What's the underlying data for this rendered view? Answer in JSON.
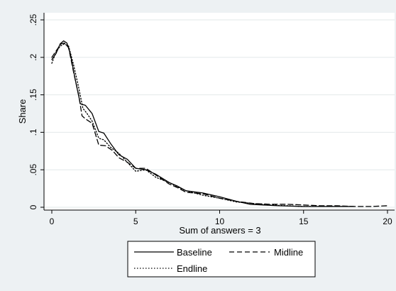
{
  "chart_data": {
    "type": "line",
    "title": "",
    "xlabel": "Sum of answers = 3",
    "ylabel": "Share",
    "xlim": [
      0,
      20
    ],
    "ylim": [
      0,
      0.25
    ],
    "x_ticks": [
      {
        "value": 0,
        "label": "0"
      },
      {
        "value": 5,
        "label": "5"
      },
      {
        "value": 10,
        "label": "10"
      },
      {
        "value": 15,
        "label": "15"
      },
      {
        "value": 20,
        "label": "20"
      }
    ],
    "y_ticks": [
      {
        "value": 0,
        "label": "0"
      },
      {
        "value": 0.05,
        "label": ".05"
      },
      {
        "value": 0.1,
        "label": ".1"
      },
      {
        "value": 0.15,
        "label": ".15"
      },
      {
        "value": 0.2,
        "label": ".2"
      },
      {
        "value": 0.25,
        "label": ".25"
      }
    ],
    "grid": true,
    "legend_position": "bottom",
    "series": [
      {
        "name": "Baseline",
        "style": "solid",
        "color": "#000000",
        "points": [
          [
            0,
            0.197
          ],
          [
            0.25,
            0.205
          ],
          [
            0.5,
            0.218
          ],
          [
            0.7,
            0.222
          ],
          [
            0.9,
            0.219
          ],
          [
            1.1,
            0.205
          ],
          [
            1.4,
            0.17
          ],
          [
            1.7,
            0.138
          ],
          [
            2.0,
            0.136
          ],
          [
            2.4,
            0.125
          ],
          [
            2.8,
            0.101
          ],
          [
            3.1,
            0.099
          ],
          [
            3.5,
            0.085
          ],
          [
            4.0,
            0.07
          ],
          [
            4.5,
            0.064
          ],
          [
            5.0,
            0.052
          ],
          [
            5.6,
            0.05
          ],
          [
            6.2,
            0.044
          ],
          [
            7.0,
            0.033
          ],
          [
            7.5,
            0.028
          ],
          [
            8.0,
            0.022
          ],
          [
            9.0,
            0.019
          ],
          [
            10.0,
            0.014
          ],
          [
            11.0,
            0.008
          ],
          [
            11.8,
            0.004
          ],
          [
            12.6,
            0.003
          ],
          [
            13.5,
            0.002
          ],
          [
            15.0,
            0.001
          ],
          [
            16.5,
            0.001
          ],
          [
            18.0,
            0.001
          ]
        ]
      },
      {
        "name": "Midline",
        "style": "dashed",
        "color": "#000000",
        "points": [
          [
            0,
            0.2
          ],
          [
            0.3,
            0.21
          ],
          [
            0.55,
            0.218
          ],
          [
            0.75,
            0.219
          ],
          [
            1.0,
            0.213
          ],
          [
            1.3,
            0.18
          ],
          [
            1.6,
            0.15
          ],
          [
            1.8,
            0.122
          ],
          [
            2.0,
            0.118
          ],
          [
            2.4,
            0.112
          ],
          [
            2.8,
            0.083
          ],
          [
            3.2,
            0.082
          ],
          [
            3.6,
            0.076
          ],
          [
            4.0,
            0.066
          ],
          [
            4.5,
            0.06
          ],
          [
            5.0,
            0.052
          ],
          [
            5.6,
            0.052
          ],
          [
            6.2,
            0.043
          ],
          [
            7.0,
            0.031
          ],
          [
            7.5,
            0.026
          ],
          [
            8.0,
            0.02
          ],
          [
            9.0,
            0.018
          ],
          [
            10.0,
            0.012
          ],
          [
            11.0,
            0.008
          ],
          [
            12.0,
            0.005
          ],
          [
            13.0,
            0.004
          ],
          [
            14.0,
            0.004
          ],
          [
            15.0,
            0.003
          ],
          [
            16.0,
            0.002
          ],
          [
            17.0,
            0.002
          ],
          [
            18.0,
            0.001
          ],
          [
            19.0,
            0.001
          ],
          [
            20.0,
            0.002
          ]
        ]
      },
      {
        "name": "Endline",
        "style": "dotted",
        "color": "#000000",
        "points": [
          [
            0,
            0.192
          ],
          [
            0.25,
            0.207
          ],
          [
            0.5,
            0.215
          ],
          [
            0.75,
            0.218
          ],
          [
            1.0,
            0.215
          ],
          [
            1.3,
            0.19
          ],
          [
            1.6,
            0.16
          ],
          [
            1.85,
            0.132
          ],
          [
            2.1,
            0.125
          ],
          [
            2.4,
            0.115
          ],
          [
            2.8,
            0.092
          ],
          [
            3.1,
            0.09
          ],
          [
            3.5,
            0.08
          ],
          [
            4.0,
            0.072
          ],
          [
            4.5,
            0.06
          ],
          [
            5.0,
            0.048
          ],
          [
            5.6,
            0.05
          ],
          [
            6.2,
            0.04
          ],
          [
            7.0,
            0.033
          ],
          [
            7.5,
            0.027
          ],
          [
            8.0,
            0.022
          ],
          [
            9.0,
            0.016
          ],
          [
            10.0,
            0.012
          ],
          [
            11.0,
            0.007
          ],
          [
            12.0,
            0.005
          ],
          [
            13.0,
            0.003
          ],
          [
            14.0,
            0.002
          ],
          [
            15.0,
            0.001
          ],
          [
            16.5,
            0.001
          ],
          [
            18.0,
            0.001
          ]
        ]
      }
    ]
  }
}
